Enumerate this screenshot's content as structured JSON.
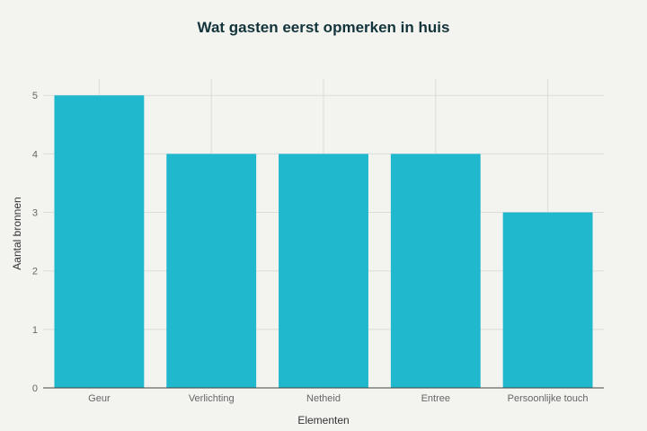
{
  "chart_data": {
    "type": "bar",
    "title": "Wat gasten eerst opmerken in huis",
    "xlabel": "Elementen",
    "ylabel": "Aantal bronnen",
    "categories": [
      "Geur",
      "Verlichting",
      "Netheid",
      "Entree",
      "Persoonlijke touch"
    ],
    "values": [
      5,
      4,
      4,
      4,
      3
    ],
    "ylim": [
      0,
      5.28
    ],
    "yticks": [
      0,
      1,
      2,
      3,
      4,
      5
    ],
    "grid": true,
    "bar_color": "#1fb8cd",
    "legend": "none"
  }
}
